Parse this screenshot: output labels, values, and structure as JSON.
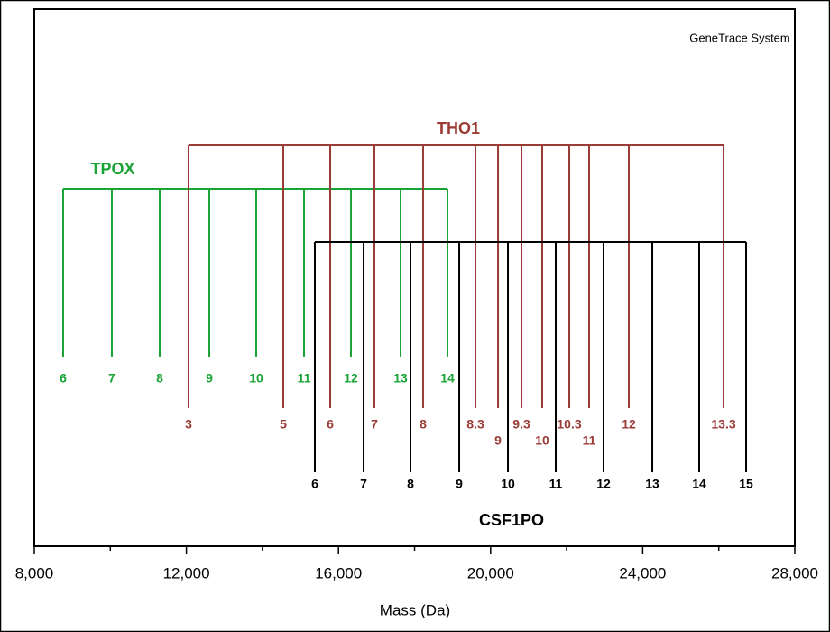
{
  "chart_data": {
    "type": "ladder",
    "annotation": "GeneTrace System",
    "x_label": "Mass (Da)",
    "xlim": [
      8000,
      28000
    ],
    "xticks": [
      {
        "value": 8000,
        "label": "8,000"
      },
      {
        "value": 12000,
        "label": "12,000"
      },
      {
        "value": 16000,
        "label": "16,000"
      },
      {
        "value": 20000,
        "label": "20,000"
      },
      {
        "value": 24000,
        "label": "24,000"
      },
      {
        "value": 28000,
        "label": "28,000"
      }
    ],
    "xminorticks": [
      10000,
      14000,
      18000,
      22000,
      26000
    ],
    "series": [
      {
        "name": "TPOX",
        "color": "#1aa336",
        "alleles": [
          "6",
          "7",
          "8",
          "9",
          "10",
          "11",
          "12",
          "13",
          "14"
        ],
        "x": [
          8759,
          10040,
          11298,
          12603,
          13836,
          15094,
          16328,
          17632,
          18866
        ]
      },
      {
        "name": "THO1",
        "color": "#9b3b36",
        "alleles": [
          "3",
          "5",
          "6",
          "7",
          "8",
          "8.3",
          "9",
          "9.3",
          "10",
          "10.3",
          "11",
          "12",
          "13.3"
        ],
        "x": [
          12057,
          14548,
          15782,
          16944,
          18226,
          19602,
          20196,
          20812,
          21357,
          22069,
          22591,
          23635,
          26126
        ]
      },
      {
        "name": "CSF1PO",
        "color": "#000000",
        "alleles": [
          "6",
          "7",
          "8",
          "9",
          "10",
          "11",
          "12",
          "13",
          "14",
          "15"
        ],
        "x": [
          15378,
          16660,
          17893,
          19175,
          20456,
          21713,
          22970,
          24252,
          25485,
          26719
        ]
      }
    ]
  }
}
